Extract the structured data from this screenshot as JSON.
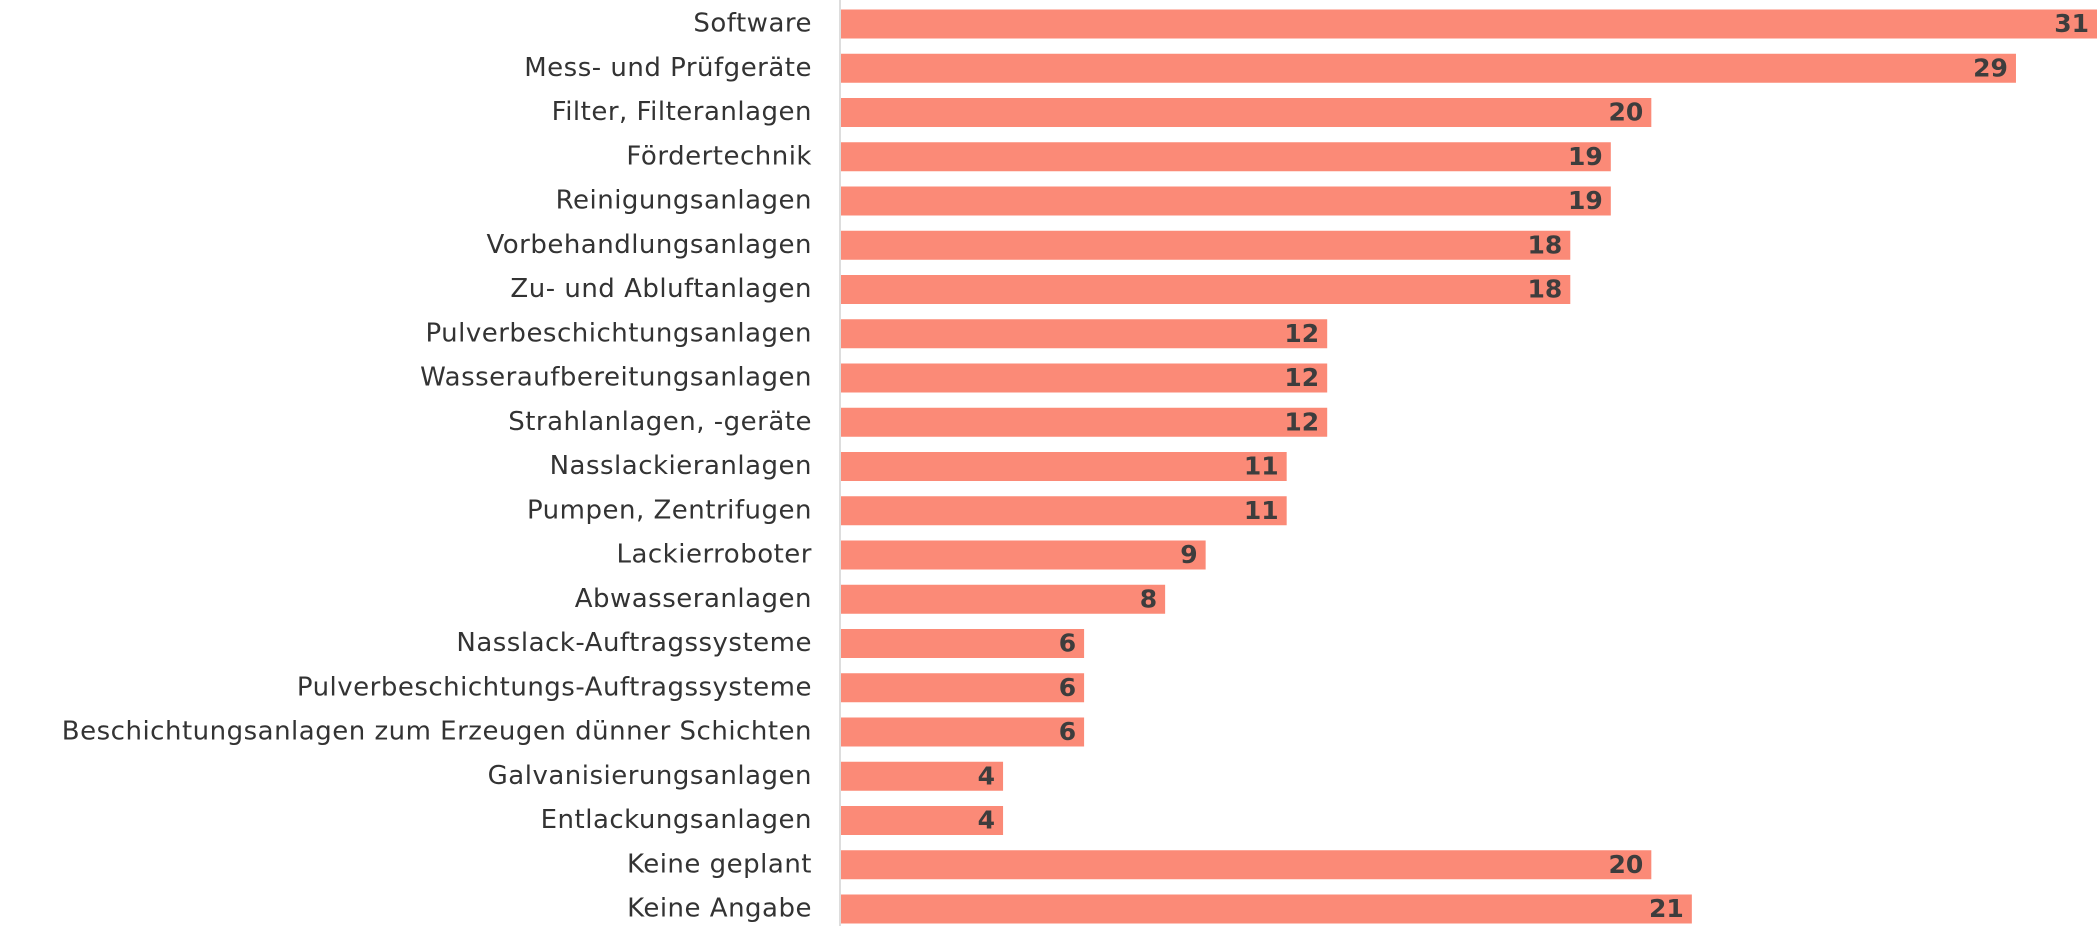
{
  "chart_data": {
    "type": "bar",
    "orientation": "horizontal",
    "categories": [
      "Software",
      "Mess- und Prüfgeräte",
      "Filter, Filteranlagen",
      "Fördertechnik",
      "Reinigungsanlagen",
      "Vorbehandlungsanlagen",
      "Zu- und Abluftanlagen",
      "Pulverbeschichtungsanlagen",
      "Wasseraufbereitungsanlagen",
      "Strahlanlagen, -geräte",
      "Nasslackieranlagen",
      "Pumpen, Zentrifugen",
      "Lackierroboter",
      "Abwasseranlagen",
      "Nasslack-Auftragssysteme",
      "Pulverbeschichtungs-Auftragssysteme",
      "Beschichtungsanlagen zum Erzeugen dünner Schichten",
      "Galvanisierungsanlagen",
      "Entlackungsanlagen",
      "Keine geplant",
      "Keine Angabe"
    ],
    "values": [
      31,
      29,
      20,
      19,
      19,
      18,
      18,
      12,
      12,
      12,
      11,
      11,
      9,
      8,
      6,
      6,
      6,
      4,
      4,
      20,
      21
    ],
    "color": "#fb8a77",
    "xlim": [
      0,
      31
    ]
  }
}
